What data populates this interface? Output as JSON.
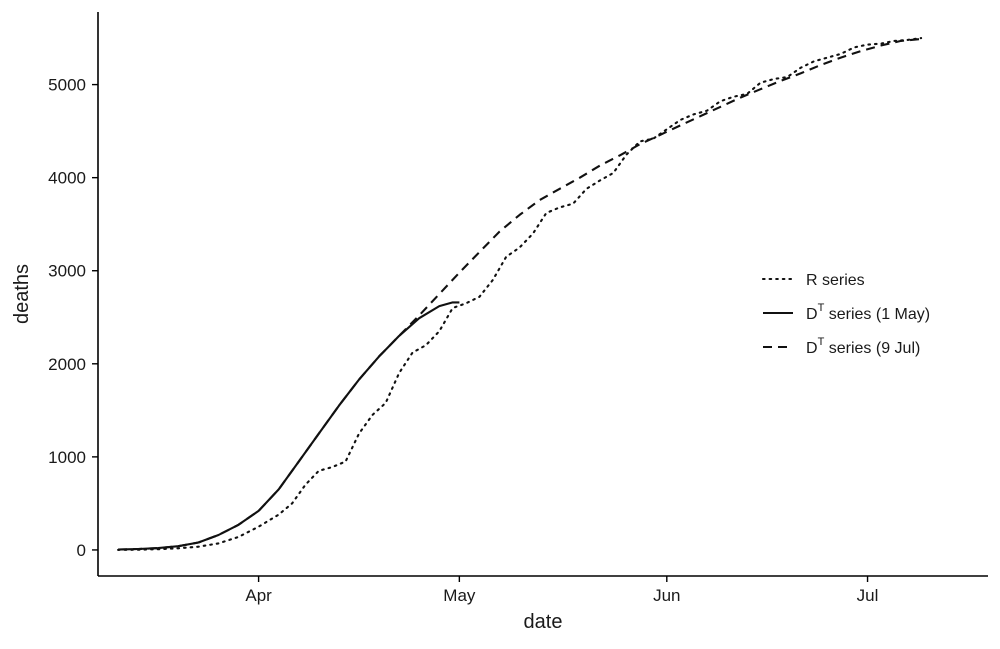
{
  "chart_data": {
    "type": "line",
    "xlabel": "date",
    "ylabel": "deaths",
    "xlim": [
      "2020-03-08",
      "2020-07-19"
    ],
    "ylim": [
      -280,
      5780
    ],
    "grid": false,
    "legend_position": "right",
    "x_ticks": [
      {
        "date": "2020-04-01",
        "label": "Apr"
      },
      {
        "date": "2020-05-01",
        "label": "May"
      },
      {
        "date": "2020-06-01",
        "label": "Jun"
      },
      {
        "date": "2020-07-01",
        "label": "Jul"
      }
    ],
    "y_ticks": [
      0,
      1000,
      2000,
      3000,
      4000,
      5000
    ],
    "series": [
      {
        "name": "R series",
        "legend_main": "R series",
        "legend_sup": "",
        "legend_tail": "",
        "style": "dotted",
        "points": [
          [
            "2020-03-11",
            0
          ],
          [
            "2020-03-14",
            3
          ],
          [
            "2020-03-17",
            8
          ],
          [
            "2020-03-20",
            18
          ],
          [
            "2020-03-23",
            35
          ],
          [
            "2020-03-26",
            70
          ],
          [
            "2020-03-29",
            140
          ],
          [
            "2020-04-01",
            250
          ],
          [
            "2020-04-04",
            380
          ],
          [
            "2020-04-06",
            500
          ],
          [
            "2020-04-08",
            700
          ],
          [
            "2020-04-10",
            850
          ],
          [
            "2020-04-12",
            890
          ],
          [
            "2020-04-14",
            950
          ],
          [
            "2020-04-16",
            1250
          ],
          [
            "2020-04-18",
            1450
          ],
          [
            "2020-04-20",
            1580
          ],
          [
            "2020-04-22",
            1900
          ],
          [
            "2020-04-24",
            2120
          ],
          [
            "2020-04-26",
            2200
          ],
          [
            "2020-04-28",
            2350
          ],
          [
            "2020-04-30",
            2600
          ],
          [
            "2020-05-02",
            2650
          ],
          [
            "2020-05-04",
            2720
          ],
          [
            "2020-05-06",
            2900
          ],
          [
            "2020-05-08",
            3150
          ],
          [
            "2020-05-10",
            3250
          ],
          [
            "2020-05-12",
            3400
          ],
          [
            "2020-05-14",
            3620
          ],
          [
            "2020-05-16",
            3680
          ],
          [
            "2020-05-18",
            3720
          ],
          [
            "2020-05-20",
            3880
          ],
          [
            "2020-05-22",
            3970
          ],
          [
            "2020-05-24",
            4050
          ],
          [
            "2020-05-26",
            4250
          ],
          [
            "2020-05-28",
            4390
          ],
          [
            "2020-05-30",
            4420
          ],
          [
            "2020-06-01",
            4520
          ],
          [
            "2020-06-03",
            4620
          ],
          [
            "2020-06-05",
            4680
          ],
          [
            "2020-06-07",
            4720
          ],
          [
            "2020-06-09",
            4820
          ],
          [
            "2020-06-11",
            4870
          ],
          [
            "2020-06-13",
            4900
          ],
          [
            "2020-06-15",
            5020
          ],
          [
            "2020-06-17",
            5060
          ],
          [
            "2020-06-19",
            5080
          ],
          [
            "2020-06-21",
            5180
          ],
          [
            "2020-06-23",
            5250
          ],
          [
            "2020-06-25",
            5290
          ],
          [
            "2020-06-27",
            5330
          ],
          [
            "2020-06-29",
            5400
          ],
          [
            "2020-07-01",
            5430
          ],
          [
            "2020-07-03",
            5440
          ],
          [
            "2020-07-05",
            5470
          ],
          [
            "2020-07-07",
            5480
          ],
          [
            "2020-07-09",
            5500
          ]
        ]
      },
      {
        "name": "D^T series (1 May)",
        "legend_main": "D",
        "legend_sup": "T",
        "legend_tail": " series (1 May)",
        "style": "solid",
        "points": [
          [
            "2020-03-11",
            5
          ],
          [
            "2020-03-14",
            10
          ],
          [
            "2020-03-17",
            20
          ],
          [
            "2020-03-20",
            40
          ],
          [
            "2020-03-23",
            80
          ],
          [
            "2020-03-26",
            160
          ],
          [
            "2020-03-29",
            270
          ],
          [
            "2020-04-01",
            420
          ],
          [
            "2020-04-04",
            650
          ],
          [
            "2020-04-07",
            950
          ],
          [
            "2020-04-10",
            1250
          ],
          [
            "2020-04-13",
            1550
          ],
          [
            "2020-04-16",
            1830
          ],
          [
            "2020-04-19",
            2080
          ],
          [
            "2020-04-22",
            2300
          ],
          [
            "2020-04-25",
            2490
          ],
          [
            "2020-04-28",
            2620
          ],
          [
            "2020-04-30",
            2660
          ],
          [
            "2020-05-01",
            2660
          ]
        ]
      },
      {
        "name": "D^T series (9 Jul)",
        "legend_main": "D",
        "legend_sup": "T",
        "legend_tail": " series (9 Jul)",
        "style": "dashed",
        "points": [
          [
            "2020-03-11",
            5
          ],
          [
            "2020-03-14",
            10
          ],
          [
            "2020-03-17",
            20
          ],
          [
            "2020-03-20",
            40
          ],
          [
            "2020-03-23",
            80
          ],
          [
            "2020-03-26",
            160
          ],
          [
            "2020-03-29",
            270
          ],
          [
            "2020-04-01",
            420
          ],
          [
            "2020-04-04",
            650
          ],
          [
            "2020-04-07",
            950
          ],
          [
            "2020-04-10",
            1250
          ],
          [
            "2020-04-13",
            1550
          ],
          [
            "2020-04-16",
            1830
          ],
          [
            "2020-04-19",
            2080
          ],
          [
            "2020-04-22",
            2300
          ],
          [
            "2020-04-25",
            2520
          ],
          [
            "2020-04-28",
            2750
          ],
          [
            "2020-05-01",
            2980
          ],
          [
            "2020-05-04",
            3200
          ],
          [
            "2020-05-07",
            3420
          ],
          [
            "2020-05-10",
            3600
          ],
          [
            "2020-05-13",
            3760
          ],
          [
            "2020-05-16",
            3880
          ],
          [
            "2020-05-19",
            4000
          ],
          [
            "2020-05-22",
            4130
          ],
          [
            "2020-05-25",
            4240
          ],
          [
            "2020-05-28",
            4360
          ],
          [
            "2020-05-31",
            4460
          ],
          [
            "2020-06-03",
            4560
          ],
          [
            "2020-06-06",
            4660
          ],
          [
            "2020-06-09",
            4760
          ],
          [
            "2020-06-12",
            4860
          ],
          [
            "2020-06-15",
            4950
          ],
          [
            "2020-06-18",
            5040
          ],
          [
            "2020-06-21",
            5120
          ],
          [
            "2020-06-24",
            5210
          ],
          [
            "2020-06-27",
            5290
          ],
          [
            "2020-06-30",
            5360
          ],
          [
            "2020-07-03",
            5420
          ],
          [
            "2020-07-06",
            5470
          ],
          [
            "2020-07-09",
            5490
          ]
        ]
      }
    ]
  }
}
